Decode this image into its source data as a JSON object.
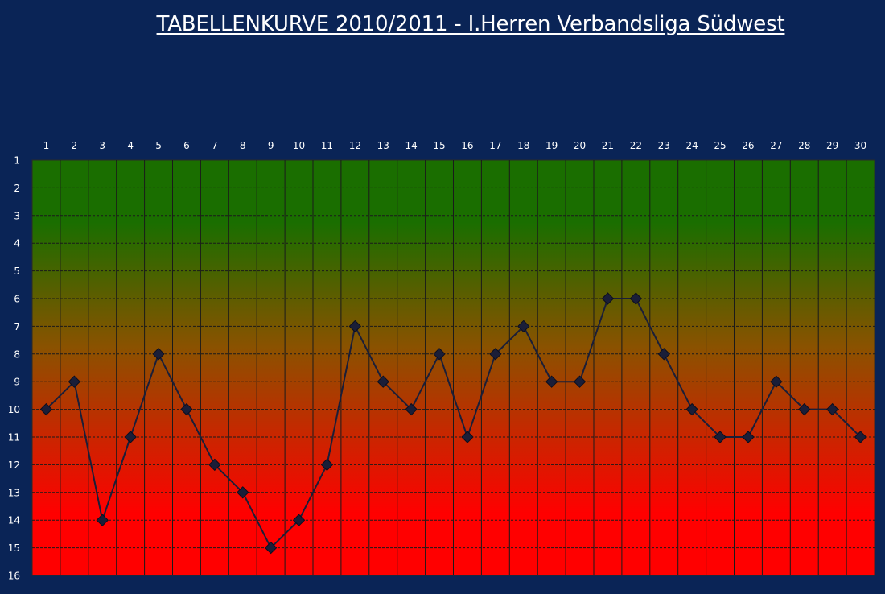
{
  "chart_data": {
    "type": "line",
    "title": "TABELLENKURVE 2010/2011 - I.Herren Verbandsliga Südwest",
    "x": [
      1,
      2,
      3,
      4,
      5,
      6,
      7,
      8,
      9,
      10,
      11,
      12,
      13,
      14,
      15,
      16,
      17,
      18,
      19,
      20,
      21,
      22,
      23,
      24,
      25,
      26,
      27,
      28,
      29,
      30
    ],
    "x_tick_labels": [
      "1",
      "2",
      "3",
      "4",
      "5",
      "6",
      "7",
      "8",
      "9",
      "10",
      "11",
      "12",
      "13",
      "14",
      "15",
      "16",
      "17",
      "18",
      "19",
      "20",
      "21",
      "22",
      "23",
      "24",
      "25",
      "26",
      "27",
      "28",
      "29",
      "30"
    ],
    "y_tick_labels": [
      "1",
      "2",
      "3",
      "4",
      "5",
      "6",
      "7",
      "8",
      "9",
      "10",
      "11",
      "12",
      "13",
      "14",
      "15",
      "16"
    ],
    "series": [
      {
        "values": [
          10,
          9,
          14,
          11,
          8,
          10,
          12,
          13,
          15,
          14,
          12,
          7,
          9,
          10,
          8,
          11,
          8,
          7,
          9,
          9,
          6,
          6,
          8,
          10,
          11,
          11,
          9,
          10,
          10,
          11
        ]
      }
    ],
    "xlim": [
      1,
      30
    ],
    "ylim": [
      1,
      16
    ],
    "y_inverted": true,
    "x_axis_position": "top",
    "grid": true,
    "marker": "diamond",
    "colors": {
      "background": "#0a2456",
      "gradient_top": "#1a6e00",
      "gradient_mid": "#8a5200",
      "gradient_bottom": "#ff0000",
      "line": "#1a1e38",
      "grid": "#1a1a1a",
      "text": "#ffffff"
    }
  }
}
